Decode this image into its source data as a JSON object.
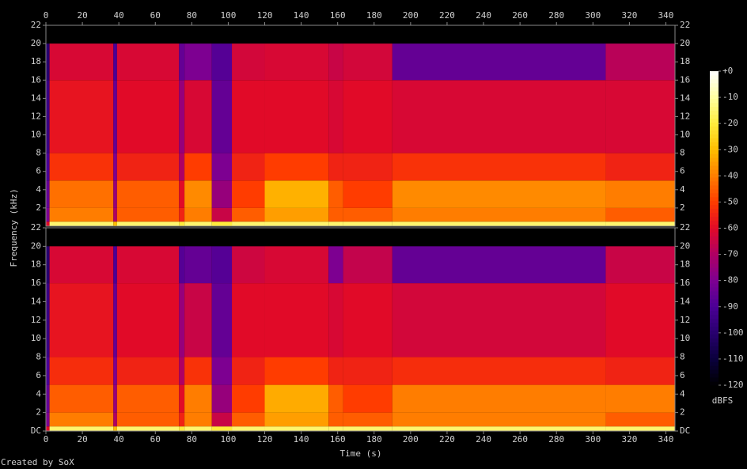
{
  "chart_data": {
    "type": "heatmap",
    "xlabel": "Time (s)",
    "ylabel": "Frequency (kHz)",
    "footer": "Created by SoX",
    "xlim": [
      0,
      345
    ],
    "xticks": [
      0,
      20,
      40,
      60,
      80,
      100,
      120,
      140,
      160,
      180,
      200,
      220,
      240,
      260,
      280,
      300,
      320,
      340
    ],
    "x_edges": [
      0,
      2,
      37,
      39,
      73,
      76,
      91,
      102,
      120,
      155,
      163,
      190,
      307,
      345
    ],
    "y_edges": [
      0,
      0.5,
      2,
      5,
      8,
      16,
      20,
      22
    ],
    "channels": [
      {
        "ylim": [
          0,
          22
        ],
        "yticks": [
          2,
          4,
          6,
          8,
          10,
          12,
          14,
          16,
          18,
          20,
          22
        ],
        "values": [
          [
            -60,
            -15,
            -30,
            -15,
            -20,
            -15,
            -20,
            -15,
            -15,
            -15,
            -15,
            -15,
            -15
          ],
          [
            -80,
            -40,
            -70,
            -45,
            -55,
            -40,
            -65,
            -45,
            -35,
            -45,
            -45,
            -40,
            -45
          ],
          [
            -85,
            -42,
            -75,
            -45,
            -60,
            -38,
            -75,
            -50,
            -32,
            -45,
            -50,
            -38,
            -40
          ],
          [
            -90,
            -52,
            -80,
            -55,
            -70,
            -50,
            -80,
            -55,
            -50,
            -55,
            -55,
            -52,
            -55
          ],
          [
            -95,
            -58,
            -85,
            -60,
            -75,
            -62,
            -85,
            -60,
            -60,
            -62,
            -60,
            -62,
            -62
          ],
          [
            -100,
            -62,
            -90,
            -62,
            -85,
            -80,
            -88,
            -63,
            -62,
            -65,
            -63,
            -85,
            -68
          ],
          [
            null,
            null,
            null,
            null,
            null,
            null,
            null,
            null,
            null,
            null,
            null,
            null,
            null
          ]
        ]
      },
      {
        "ylim": [
          0,
          22
        ],
        "yticks": [
          {
            "value": 0,
            "label": "DC"
          },
          2,
          4,
          6,
          8,
          10,
          12,
          14,
          16,
          18,
          20,
          22
        ],
        "values": [
          [
            -60,
            -15,
            -30,
            -15,
            -20,
            -15,
            -20,
            -15,
            -15,
            -15,
            -15,
            -15,
            -15
          ],
          [
            -80,
            -40,
            -70,
            -45,
            -55,
            -40,
            -65,
            -45,
            -35,
            -45,
            -45,
            -40,
            -45
          ],
          [
            -85,
            -45,
            -75,
            -45,
            -60,
            -40,
            -75,
            -50,
            -33,
            -45,
            -50,
            -40,
            -40
          ],
          [
            -90,
            -53,
            -80,
            -55,
            -70,
            -52,
            -80,
            -55,
            -50,
            -55,
            -55,
            -53,
            -55
          ],
          [
            -95,
            -58,
            -85,
            -60,
            -75,
            -65,
            -85,
            -60,
            -60,
            -62,
            -60,
            -63,
            -60
          ],
          [
            -100,
            -62,
            -90,
            -62,
            -88,
            -85,
            -88,
            -64,
            -62,
            -80,
            -66,
            -85,
            -65
          ],
          [
            null,
            null,
            null,
            null,
            null,
            null,
            null,
            null,
            null,
            null,
            null,
            null,
            null
          ]
        ]
      }
    ],
    "colorbar": {
      "label": "dBFS",
      "lim": [
        -120,
        0
      ],
      "ticks": [
        {
          "value": 0,
          "label": "+0"
        },
        -10,
        -20,
        -30,
        -40,
        -50,
        -60,
        -70,
        -80,
        -90,
        -100,
        -110,
        -120
      ]
    }
  }
}
